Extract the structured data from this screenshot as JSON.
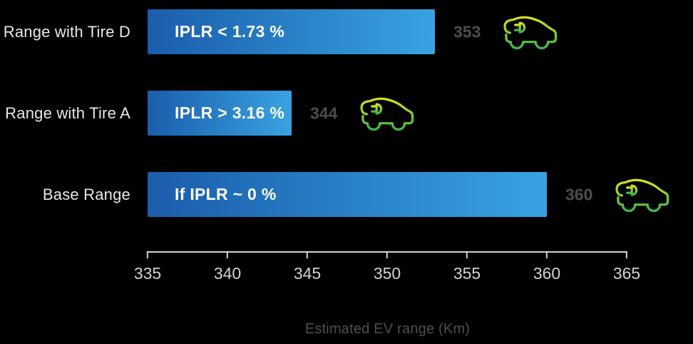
{
  "chart_data": {
    "type": "bar",
    "orientation": "horizontal",
    "title": "",
    "xlabel": "Estimated EV range (Km)",
    "categories": [
      "Range with Tire D",
      "Range with Tire A",
      "Base Range"
    ],
    "values": [
      353,
      344,
      360
    ],
    "bar_labels": [
      "IPLR < 1.73 %",
      "IPLR > 3.16 %",
      "If IPLR ~ 0 %"
    ],
    "xlim": [
      335,
      365
    ],
    "xticks": [
      335,
      340,
      345,
      350,
      355,
      360,
      365
    ],
    "grid": false,
    "legend": "none",
    "rows": [
      {
        "category": "Range with Tire D",
        "bar_label": "IPLR < 1.73 %",
        "value": 353,
        "icon": "ev-car-with-plug-icon"
      },
      {
        "category": "Range with Tire A",
        "bar_label": "IPLR > 3.16 %",
        "value": 344,
        "icon": "ev-car-with-plug-icon"
      },
      {
        "category": "Base Range",
        "bar_label": "If IPLR ~ 0 %",
        "value": 360,
        "icon": "ev-car-with-plug-icon"
      }
    ]
  },
  "colors": {
    "background": "#000000",
    "bar_gradient_start": "#1a5dac",
    "bar_gradient_end": "#38a3e2",
    "bar_text": "#ffffff",
    "category_label": "#e8e8e8",
    "value_label": "#4d4d4d",
    "axis_line": "#d2d2d2",
    "tick_label": "#d2d2d2",
    "axis_title": "#4f4f4f",
    "car_gradient_top": "#d7df23",
    "car_gradient_bottom": "#3db54a"
  }
}
